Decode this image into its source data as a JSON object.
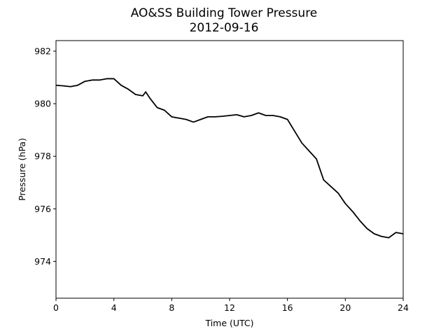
{
  "chart_data": {
    "type": "line",
    "title": "AO&SS Building Tower Pressure",
    "subtitle": "2012-09-16",
    "xlabel": "Time (UTC)",
    "ylabel": "Pressure (hPa)",
    "xlim": [
      0,
      24
    ],
    "ylim": [
      972.6,
      982.4
    ],
    "xticks": [
      0,
      4,
      8,
      12,
      16,
      20,
      24
    ],
    "yticks": [
      974,
      976,
      978,
      980,
      982
    ],
    "grid": false,
    "series": [
      {
        "color": "#000000",
        "x": [
          0,
          0.5,
          1.0,
          1.5,
          2.0,
          2.5,
          3.0,
          3.5,
          4.0,
          4.5,
          5.0,
          5.5,
          6.0,
          6.2,
          6.5,
          7.0,
          7.5,
          8.0,
          8.5,
          9.0,
          9.5,
          10.0,
          10.5,
          11.0,
          11.5,
          12.0,
          12.5,
          13.0,
          13.5,
          14.0,
          14.5,
          15.0,
          15.5,
          16.0,
          16.5,
          17.0,
          17.5,
          18.0,
          18.5,
          19.0,
          19.5,
          20.0,
          20.5,
          21.0,
          21.5,
          22.0,
          22.5,
          23.0,
          23.5,
          24.0
        ],
        "y": [
          980.7,
          980.68,
          980.65,
          980.7,
          980.85,
          980.9,
          980.9,
          980.95,
          980.95,
          980.7,
          980.55,
          980.35,
          980.3,
          980.45,
          980.2,
          979.85,
          979.75,
          979.5,
          979.45,
          979.4,
          979.3,
          979.4,
          979.5,
          979.5,
          979.52,
          979.55,
          979.58,
          979.5,
          979.55,
          979.65,
          979.55,
          979.55,
          979.5,
          979.4,
          978.95,
          978.5,
          978.2,
          977.9,
          977.1,
          976.85,
          976.6,
          976.2,
          975.9,
          975.55,
          975.25,
          975.05,
          974.95,
          974.9,
          975.1,
          975.05
        ]
      }
    ]
  }
}
